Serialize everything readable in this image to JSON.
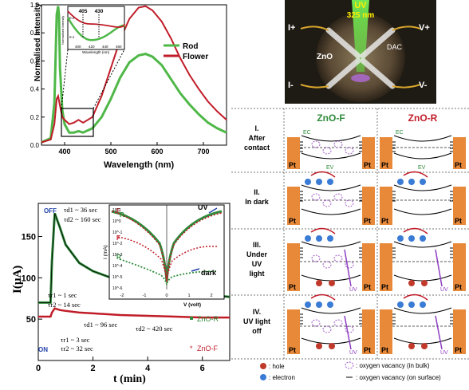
{
  "chart_data": [
    {
      "type": "line",
      "xlabel": "Wavelength (nm)",
      "ylabel": "Normalised Intensity",
      "xlim": [
        350,
        750
      ],
      "ylim": [
        0,
        1.0
      ],
      "xticks": [
        "400",
        "500",
        "600",
        "700"
      ],
      "yticks": [
        "0.0",
        "0.2",
        "0.4",
        "0.6",
        "0.8",
        "1.0"
      ],
      "legend": {
        "position": "top-right",
        "entries": [
          "Rod",
          "Flower"
        ]
      },
      "colors": {
        "Rod": "#4fb848",
        "Flower": "#c01c28"
      },
      "series": [
        {
          "name": "Rod",
          "x": [
            350,
            370,
            378,
            383,
            386,
            388,
            390,
            395,
            400,
            410,
            420,
            430,
            440,
            460,
            480,
            500,
            520,
            540,
            560,
            575,
            590,
            610,
            630,
            650,
            670,
            690,
            710,
            730,
            750
          ],
          "y": [
            0.02,
            0.05,
            0.3,
            0.93,
            0.99,
            0.92,
            0.55,
            0.25,
            0.15,
            0.09,
            0.09,
            0.1,
            0.09,
            0.12,
            0.2,
            0.33,
            0.48,
            0.59,
            0.64,
            0.65,
            0.63,
            0.57,
            0.47,
            0.37,
            0.29,
            0.22,
            0.16,
            0.12,
            0.09
          ]
        },
        {
          "name": "Flower",
          "x": [
            350,
            370,
            378,
            383,
            386,
            390,
            395,
            400,
            410,
            420,
            430,
            440,
            460,
            480,
            500,
            520,
            540,
            560,
            575,
            590,
            610,
            630,
            650,
            670,
            690,
            710,
            730,
            750
          ],
          "y": [
            0.02,
            0.04,
            0.15,
            0.33,
            0.35,
            0.28,
            0.2,
            0.18,
            0.15,
            0.16,
            0.18,
            0.16,
            0.2,
            0.35,
            0.55,
            0.75,
            0.9,
            0.98,
            0.99,
            0.96,
            0.88,
            0.76,
            0.62,
            0.5,
            0.4,
            0.31,
            0.24,
            0.18
          ]
        }
      ],
      "inset": {
        "ylabel": "Normalised Intensity",
        "xlabel": "Wavelength (nm)",
        "xticks": [
          "400",
          "420",
          "440",
          "460"
        ],
        "yticks": [
          "0.1",
          "0.2"
        ],
        "annotations": [
          "405",
          "430"
        ]
      }
    },
    {
      "type": "line",
      "xlabel": "t (min)",
      "ylabel": "I(µA)",
      "xlim": [
        0,
        7
      ],
      "ylim": [
        0,
        190
      ],
      "xticks": [
        "0",
        "2",
        "4",
        "6"
      ],
      "yticks": [
        "50",
        "100",
        "150"
      ],
      "legend": {
        "position": "right",
        "entries": [
          "ZnO-R",
          "ZnO-F"
        ]
      },
      "colors": {
        "ZnO-R": "#2e8b3a",
        "ZnO-F": "#c01c28",
        "fit": "#000000"
      },
      "series": [
        {
          "name": "ZnO-R",
          "x": [
            0,
            0.3,
            0.45,
            0.5,
            0.6,
            0.8,
            1.0,
            1.5,
            2,
            3,
            4,
            5,
            6,
            7
          ],
          "y": [
            70,
            70,
            70,
            120,
            178,
            160,
            140,
            118,
            108,
            96,
            89,
            85,
            80,
            77
          ]
        },
        {
          "name": "ZnO-F",
          "x": [
            0,
            0.3,
            0.45,
            0.5,
            0.6,
            0.8,
            1.0,
            1.5,
            2,
            3,
            4,
            5,
            6,
            7
          ],
          "y": [
            53,
            53,
            53,
            58,
            63,
            61,
            60,
            58,
            57,
            55,
            54,
            53,
            52,
            52
          ]
        }
      ],
      "annotations": {
        "off": "OFF",
        "on": "ON",
        "tau_r_R1": "τr1 ~ 1 sec",
        "tau_r_R2": "τr2 ~ 14 sec",
        "tau_d_R1": "τd1 ~ 36 sec",
        "tau_d_R2": "τd2 ~ 160 sec",
        "tau_d_F1": "τd1 ~ 96 sec",
        "tau_d_F2": "τd2 ~ 420 sec",
        "tau_r_F1": "τr1 ~ 3 sec",
        "tau_r_F2": "τr2 ~ 32 sec"
      },
      "inset": {
        "type": "scatter",
        "xlabel": "V (volt)",
        "ylabel": "I (mA)",
        "xticks": [
          "-2",
          "-1",
          "0",
          "1",
          "2"
        ],
        "yticks": [
          "10^1",
          "10^0",
          "10^-1",
          "10^-2",
          "10^-3",
          "10^-4",
          "10^-5",
          "10^-6"
        ],
        "labels": [
          "R",
          "F",
          "F",
          "R"
        ],
        "annotations": [
          "UV",
          "dark"
        ]
      }
    }
  ],
  "photo": {
    "uv_label": "UV",
    "wavelength_label": "325 nm",
    "i_plus": "I+",
    "i_minus": "I-",
    "v_plus": "V+",
    "v_minus": "V-",
    "zno": "ZnO",
    "dac": "DAC"
  },
  "diagram": {
    "col_f": "ZnO-F",
    "col_r": "ZnO-R",
    "rows": [
      {
        "id": "I.",
        "lines": [
          "After",
          "contact"
        ]
      },
      {
        "id": "II.",
        "lines": [
          "In dark"
        ]
      },
      {
        "id": "III.",
        "lines": [
          "Under",
          "UV",
          "light"
        ]
      },
      {
        "id": "IV.",
        "lines": [
          "UV light",
          "off"
        ]
      }
    ],
    "ec": "E",
    "ec_sub": "C",
    "ev": "E",
    "ev_sub": "V",
    "pt": "Pt",
    "uv": "UV",
    "legend": {
      "hole": ": hole",
      "electron": ": electron",
      "vac_bulk": ": oxygen vacancy (in bulk)",
      "vac_surface": ": oxygen vacancy (on surface)"
    }
  }
}
